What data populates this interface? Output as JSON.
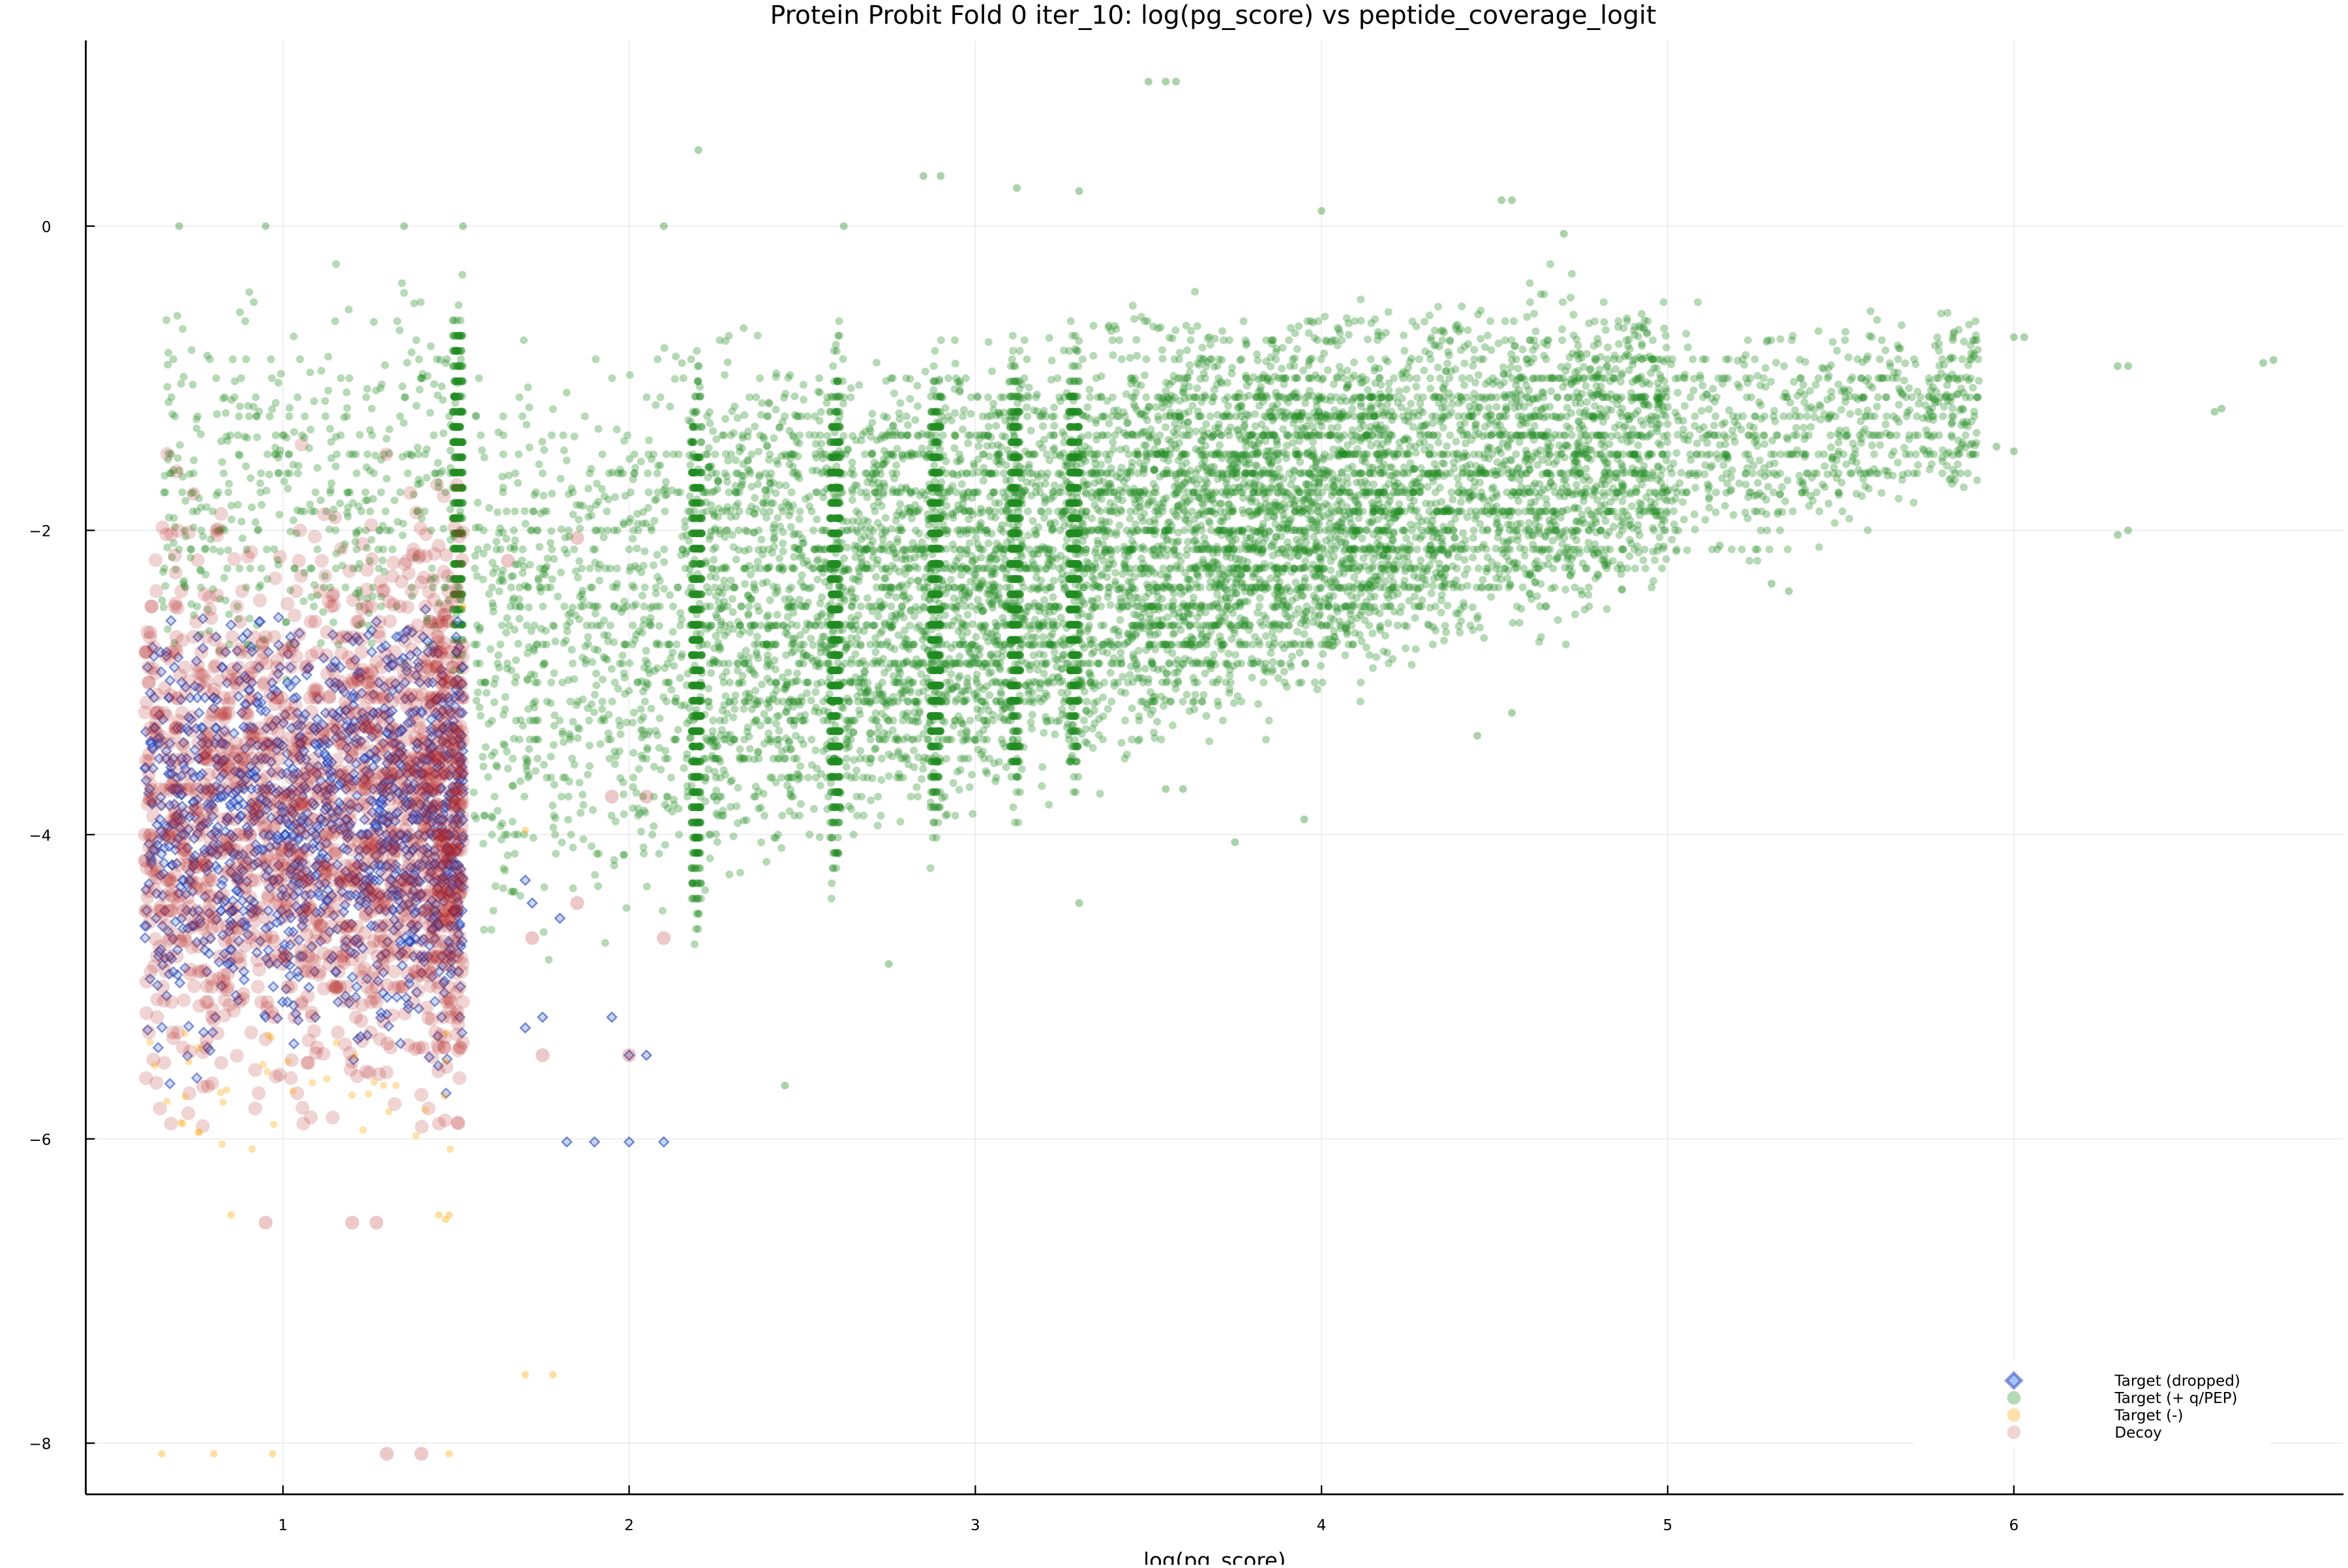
{
  "chart_data": {
    "type": "scatter",
    "title": "Protein Probit Fold 0 iter_10: log(pg_score) vs peptide_coverage_logit",
    "xlabel": "log(pg_score)",
    "ylabel": "",
    "xlim": [
      0.43,
      6.95
    ],
    "ylim": [
      -8.35,
      1.22
    ],
    "xticks": [
      1,
      2,
      3,
      4,
      5,
      6
    ],
    "xtick_labels": [
      "1",
      "2",
      "3",
      "4",
      "5",
      "6"
    ],
    "yticks": [
      0,
      -2,
      -4,
      -6,
      -8
    ],
    "ytick_labels": [
      "0",
      "−2",
      "−4",
      "−6",
      "−8"
    ],
    "grid": true,
    "legend_position": "bottom-right",
    "legend": [
      {
        "label": "Target (dropped)",
        "marker": "diamond",
        "color": "#2b3fb0",
        "fill": "#8fb8ff"
      },
      {
        "label": "Target (+ q/PEP)",
        "marker": "circle",
        "color": "#228b22"
      },
      {
        "label": "Target (-)",
        "marker": "circle",
        "color": "#ffa500"
      },
      {
        "label": "Decoy",
        "marker": "circle",
        "color": "#b22222"
      }
    ],
    "series": [
      {
        "name": "Target (+ q/PEP)",
        "color": "#228b22",
        "alpha": 0.33,
        "description": "Largest population; banded vertical columns at discrete log(pg_score) values (~1.52, 2.2, 2.6, 2.9, 3.1, 3.3, 3.45, 3.6) with a diagonal upward trend from (1.6,-4.5) to (6.8,-0.9)",
        "clusters": [
          {
            "x_range": [
              0.65,
              1.52
            ],
            "y_range": [
              -3.3,
              0.0
            ],
            "n": 900,
            "stripe_x": 1.52
          },
          {
            "x_range": [
              1.55,
              2.22
            ],
            "y_range": [
              -5.4,
              -0.3
            ],
            "n": 1500,
            "stripe_x": 2.21
          },
          {
            "x_range": [
              2.22,
              2.62
            ],
            "y_range": [
              -5.2,
              -0.25
            ],
            "n": 1700,
            "stripe_x": 2.61
          },
          {
            "x_range": [
              2.62,
              2.9
            ],
            "y_range": [
              -4.8,
              -0.45
            ],
            "n": 1500,
            "stripe_x": 2.9
          },
          {
            "x_range": [
              2.9,
              3.15
            ],
            "y_range": [
              -4.4,
              -0.35
            ],
            "n": 1400,
            "stripe_x": 3.13
          },
          {
            "x_range": [
              3.15,
              3.45
            ],
            "y_range": [
              -4.3,
              -0.3
            ],
            "n": 1500,
            "stripe_x": 3.3
          },
          {
            "x_range": [
              3.45,
              4.2
            ],
            "y_range": [
              -3.9,
              -0.15
            ],
            "n": 2600
          },
          {
            "x_range": [
              4.2,
              5.0
            ],
            "y_range": [
              -3.4,
              -0.15
            ],
            "n": 1800
          },
          {
            "x_range": [
              5.0,
              5.9
            ],
            "y_range": [
              -2.4,
              -0.4
            ],
            "n": 700
          }
        ],
        "outliers": [
          [
            3.5,
            0.95
          ],
          [
            3.55,
            0.95
          ],
          [
            3.58,
            0.95
          ],
          [
            2.2,
            0.5
          ],
          [
            2.85,
            0.33
          ],
          [
            2.9,
            0.33
          ],
          [
            3.12,
            0.25
          ],
          [
            3.3,
            0.23
          ],
          [
            4.0,
            0.1
          ],
          [
            4.52,
            0.17
          ],
          [
            4.55,
            0.17
          ],
          [
            4.7,
            -0.05
          ],
          [
            1.52,
            0.0
          ],
          [
            0.7,
            0.0
          ],
          [
            0.95,
            0.0
          ],
          [
            1.35,
            0.0
          ],
          [
            2.1,
            0.0
          ],
          [
            2.62,
            0.0
          ],
          [
            6.0,
            -0.73
          ],
          [
            6.03,
            -0.73
          ],
          [
            6.3,
            -0.92
          ],
          [
            6.33,
            -0.92
          ],
          [
            6.72,
            -0.9
          ],
          [
            6.75,
            -0.88
          ],
          [
            6.58,
            -1.22
          ],
          [
            6.6,
            -1.2
          ],
          [
            6.3,
            -2.03
          ],
          [
            6.33,
            -2.0
          ],
          [
            6.0,
            -1.48
          ],
          [
            5.95,
            -1.45
          ],
          [
            5.82,
            -1.3
          ],
          [
            5.85,
            -1.2
          ],
          [
            5.15,
            -2.1
          ],
          [
            5.3,
            -2.35
          ],
          [
            5.35,
            -2.4
          ],
          [
            4.45,
            -3.35
          ],
          [
            4.55,
            -3.2
          ],
          [
            3.95,
            -3.9
          ],
          [
            3.75,
            -4.05
          ],
          [
            3.3,
            -4.45
          ],
          [
            2.75,
            -4.85
          ],
          [
            2.45,
            -5.65
          ],
          [
            3.55,
            -3.7
          ],
          [
            3.6,
            -3.7
          ]
        ]
      },
      {
        "name": "Target (dropped)",
        "color": "#2b3fb0",
        "alpha": 0.5,
        "description": "Concentrated at log(pg_score) 0.6-1.52, y -2.1 to -5.9; a few outliers near x 1.7-2.1",
        "clusters": [
          {
            "x_range": [
              0.6,
              1.52
            ],
            "y_range": [
              -5.9,
              -2.5
            ],
            "n": 1500
          }
        ],
        "outliers": [
          [
            1.9,
            -6.02
          ],
          [
            1.82,
            -6.02
          ],
          [
            2.0,
            -6.02
          ],
          [
            2.1,
            -6.02
          ],
          [
            1.7,
            -5.27
          ],
          [
            1.75,
            -5.2
          ],
          [
            1.7,
            -4.3
          ],
          [
            1.72,
            -4.45
          ],
          [
            1.8,
            -4.55
          ],
          [
            1.95,
            -5.2
          ],
          [
            2.05,
            -5.45
          ],
          [
            2.0,
            -5.45
          ]
        ]
      },
      {
        "name": "Target (-)",
        "color": "#ffa500",
        "alpha": 0.33,
        "description": "Sparse points at low log(pg_score) 0.6-1.5, mostly y -5.3 to -6.5; outliers near -7.55 and -8.05",
        "clusters": [
          {
            "x_range": [
              0.6,
              1.5
            ],
            "y_range": [
              -6.1,
              -5.3
            ],
            "n": 40
          }
        ],
        "outliers": [
          [
            0.65,
            -8.07
          ],
          [
            0.8,
            -8.07
          ],
          [
            0.97,
            -8.07
          ],
          [
            1.48,
            -8.07
          ],
          [
            1.7,
            -7.55
          ],
          [
            1.78,
            -7.55
          ],
          [
            0.85,
            -6.5
          ],
          [
            1.45,
            -6.5
          ],
          [
            1.48,
            -6.5
          ],
          [
            1.47,
            -6.53
          ],
          [
            1.52,
            -2.5
          ],
          [
            1.7,
            -3.97
          ]
        ]
      },
      {
        "name": "Decoy",
        "color": "#b22222",
        "alpha": 0.2,
        "description": "Large circles at log(pg_score) 0.6-1.52, y from -1.3 down to -6.1, densest between -3 and -4.6",
        "clusters": [
          {
            "x_range": [
              0.6,
              1.52
            ],
            "y_range": [
              -6.0,
              -1.3
            ],
            "n": 1700
          }
        ],
        "outliers": [
          [
            0.95,
            -6.55
          ],
          [
            1.2,
            -6.55
          ],
          [
            1.27,
            -6.55
          ],
          [
            1.3,
            -8.07
          ],
          [
            1.4,
            -8.07
          ],
          [
            1.75,
            -5.45
          ],
          [
            2.0,
            -5.45
          ],
          [
            1.85,
            -4.45
          ],
          [
            1.72,
            -4.68
          ],
          [
            2.1,
            -4.68
          ],
          [
            1.85,
            -2.05
          ],
          [
            1.65,
            -2.2
          ],
          [
            1.95,
            -3.75
          ],
          [
            2.05,
            -3.75
          ]
        ]
      }
    ]
  },
  "render": {
    "seed": 20240610,
    "sizes": {
      "green": 2.6,
      "orange": 2.4,
      "decoy": 4.6,
      "diamond": 3.1
    }
  }
}
